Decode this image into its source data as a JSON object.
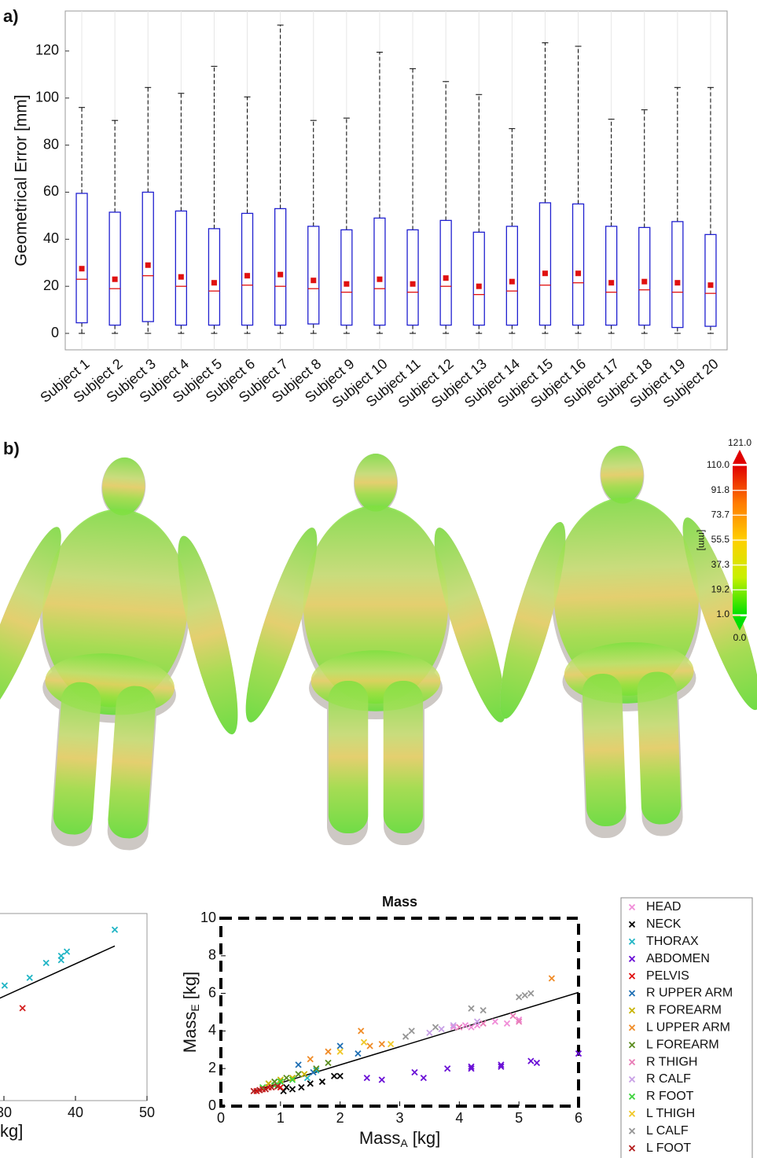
{
  "chart_data": [
    {
      "type": "box",
      "panel": "a)",
      "ylabel": "Geometrical Error [mm]",
      "categories": [
        "Subject 1",
        "Subject 2",
        "Subject 3",
        "Subject 4",
        "Subject 5",
        "Subject 6",
        "Subject 7",
        "Subject 8",
        "Subject 9",
        "Subject 10",
        "Subject 11",
        "Subject 12",
        "Subject 13",
        "Subject 14",
        "Subject 15",
        "Subject 16",
        "Subject 17",
        "Subject 18",
        "Subject 19",
        "Subject 20"
      ],
      "whisker_low": [
        0,
        0,
        0,
        0,
        0,
        0,
        0,
        0,
        0,
        0,
        0,
        0,
        0,
        0,
        0,
        0,
        0,
        0,
        0,
        0
      ],
      "q1": [
        4.5,
        3.5,
        5,
        3.5,
        3.5,
        3.5,
        3.5,
        4,
        3.5,
        3.5,
        3.5,
        3.5,
        3.5,
        3.5,
        3.5,
        3.5,
        3.5,
        3.5,
        2.5,
        3
      ],
      "median": [
        23,
        19,
        24.5,
        20,
        18,
        20.5,
        20,
        19,
        17.5,
        19,
        17.5,
        20,
        16.5,
        18,
        20.5,
        21.5,
        17.5,
        18.5,
        17.5,
        17
      ],
      "q3": [
        59.5,
        51.5,
        60,
        52,
        44.5,
        51,
        53,
        45.5,
        44,
        49,
        44,
        48,
        43,
        45.5,
        55.5,
        55,
        45.5,
        45,
        47.5,
        42
      ],
      "whisker_high": [
        96,
        90.5,
        104.5,
        102,
        113.5,
        100.5,
        131,
        90.5,
        91.5,
        119.5,
        112.5,
        107,
        101.5,
        87,
        123.5,
        122,
        91,
        95,
        104.5,
        104.5
      ],
      "mean": [
        27.5,
        23,
        29,
        24,
        21.5,
        24.5,
        25,
        22.5,
        21,
        23,
        21,
        23.5,
        20,
        22,
        25.5,
        25.5,
        21.5,
        22,
        21.5,
        20.5
      ],
      "box_color": "#2020d0",
      "median_color": "#e01010",
      "mean_color": "#e01010",
      "ylim": [
        -7,
        137
      ],
      "yticks": [
        0,
        20,
        40,
        60,
        80,
        100,
        120
      ],
      "grid": true
    },
    {
      "type": "colorbar",
      "panel": "b)",
      "label": "[mm]",
      "colors": [
        "#00e000",
        "#c8f000",
        "#ffd000",
        "#ff7a00",
        "#e00000"
      ],
      "clim": [
        1,
        110
      ],
      "ticks": [
        {
          "value": 121,
          "label": "121.0"
        },
        {
          "value": 110,
          "label": "110.0"
        },
        {
          "value": 91.8,
          "label": "91.8"
        },
        {
          "value": 73.7,
          "label": "73.7"
        },
        {
          "value": 55.5,
          "label": "55.5"
        },
        {
          "value": 37.3,
          "label": "37.3"
        },
        {
          "value": 19.2,
          "label": "19.2"
        },
        {
          "value": 1,
          "label": "1.0"
        },
        {
          "value": 0,
          "label": "0.0"
        }
      ]
    },
    {
      "type": "scatter",
      "xlabel": "kg]",
      "xlim": [
        20,
        50
      ],
      "ylim": [
        23,
        49.5
      ],
      "xticks": [
        30,
        40,
        50
      ],
      "series": [
        {
          "color": "#21b5c5",
          "x": [
            45.5,
            38.8,
            38,
            38,
            35.9,
            33.6,
            30.1
          ],
          "y": [
            47.2,
            44.1,
            43.5,
            42.9,
            42.5,
            40.4,
            39.3
          ]
        },
        {
          "color": "#d42020",
          "x": [
            32.6
          ],
          "y": [
            36.1
          ]
        }
      ],
      "fit": {
        "x": [
          29.4,
          45.5
        ],
        "y": [
          37.5,
          44.9
        ]
      }
    },
    {
      "type": "scatter",
      "title": "Mass",
      "xlabel": [
        "Mass",
        "A",
        "[kg]"
      ],
      "ylabel": [
        "Mass",
        "E",
        "[kg]"
      ],
      "xlim": [
        0,
        6
      ],
      "ylim": [
        0,
        10
      ],
      "xticks": [
        0,
        1,
        2,
        3,
        4,
        5,
        6
      ],
      "yticks": [
        0,
        2,
        4,
        6,
        8,
        10
      ],
      "legend": "outside right",
      "series": [
        {
          "name": "HEAD",
          "color": "#f08cd8",
          "x": [
            3.9,
            4.1,
            4.3,
            4.6,
            4.8,
            5.0,
            4.2
          ],
          "y": [
            4.2,
            4.3,
            4.3,
            4.5,
            4.4,
            4.6,
            4.2
          ]
        },
        {
          "name": "NECK",
          "color": "#000000",
          "x": [
            1.05,
            1.2,
            1.35,
            1.5,
            1.7,
            1.9,
            2.0,
            1.1
          ],
          "y": [
            0.8,
            0.9,
            1.0,
            1.2,
            1.3,
            1.6,
            1.6,
            1.0
          ]
        },
        {
          "name": "THORAX",
          "color": "#21b5c5",
          "x": [
            1.45,
            1.6
          ],
          "y": [
            1.5,
            1.9
          ]
        },
        {
          "name": "ABDOMEN",
          "color": "#6a10d6",
          "x": [
            2.45,
            2.7,
            3.25,
            3.4,
            3.8,
            4.2,
            4.2,
            4.7,
            4.7,
            5.2,
            5.3,
            6.0
          ],
          "y": [
            1.5,
            1.4,
            1.8,
            1.5,
            2.0,
            2.1,
            2.0,
            2.2,
            2.1,
            2.4,
            2.3,
            2.8
          ]
        },
        {
          "name": "PELVIS",
          "color": "#e01010",
          "x": [
            0.6,
            0.7,
            0.8,
            0.9,
            1.0
          ],
          "y": [
            0.8,
            0.9,
            1.0,
            1.1,
            1.0
          ]
        },
        {
          "name": "R UPPER ARM",
          "color": "#1f6fb4",
          "x": [
            1.3,
            1.55,
            2.0,
            2.3
          ],
          "y": [
            2.2,
            1.8,
            3.2,
            2.8
          ]
        },
        {
          "name": "R FOREARM",
          "color": "#c8b400",
          "x": [
            0.8,
            1.0,
            1.2,
            1.4
          ],
          "y": [
            1.2,
            1.4,
            1.5,
            1.7
          ]
        },
        {
          "name": "L UPPER ARM",
          "color": "#f08c28",
          "x": [
            1.5,
            1.8,
            2.35,
            2.5,
            2.7,
            5.55
          ],
          "y": [
            2.5,
            2.9,
            4.0,
            3.2,
            3.3,
            6.8
          ]
        },
        {
          "name": "L FOREARM",
          "color": "#5a8c1e",
          "x": [
            0.9,
            1.1,
            1.3,
            1.6,
            1.8
          ],
          "y": [
            1.3,
            1.5,
            1.7,
            2.0,
            2.3
          ]
        },
        {
          "name": "R THIGH",
          "color": "#e87cb6",
          "x": [
            4.0,
            4.4,
            4.9,
            5.0
          ],
          "y": [
            4.2,
            4.4,
            4.8,
            4.5
          ]
        },
        {
          "name": "R CALF",
          "color": "#c8a0e6",
          "x": [
            3.5,
            3.7,
            3.9,
            4.3
          ],
          "y": [
            3.9,
            4.1,
            4.3,
            4.5
          ]
        },
        {
          "name": "R FOOT",
          "color": "#3cd23c",
          "x": [
            0.7,
            0.9,
            1.0,
            1.2
          ],
          "y": [
            1.0,
            1.1,
            1.3,
            1.4
          ]
        },
        {
          "name": "L THIGH",
          "color": "#f0c828",
          "x": [
            2.0,
            2.4,
            2.85
          ],
          "y": [
            2.9,
            3.4,
            3.3
          ]
        },
        {
          "name": "L CALF",
          "color": "#969696",
          "x": [
            3.1,
            3.2,
            3.6,
            4.2,
            4.4,
            5.0,
            5.2,
            5.1
          ],
          "y": [
            3.7,
            4.0,
            4.2,
            5.2,
            5.1,
            5.8,
            6.0,
            5.9
          ]
        },
        {
          "name": "L FOOT",
          "color": "#b41e1e",
          "x": [
            0.55,
            0.65,
            0.75,
            0.85,
            0.95
          ],
          "y": [
            0.8,
            0.85,
            0.9,
            1.0,
            1.05
          ]
        }
      ],
      "fit": {
        "x": [
          0.55,
          6
        ],
        "y": [
          0.8,
          6.05
        ]
      }
    }
  ]
}
